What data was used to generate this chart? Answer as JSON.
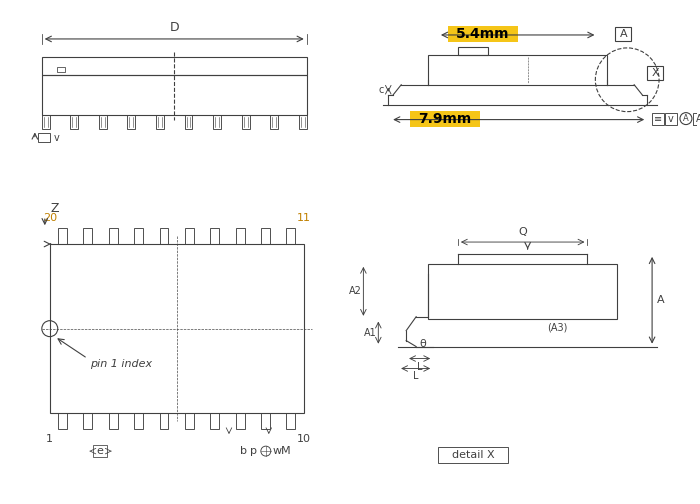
{
  "bg_color": "#ffffff",
  "line_color": "#404040",
  "dim_color": "#404040",
  "highlight_color": "#f5c518",
  "highlight_text_color": "#000000",
  "label_5_4mm": "5.4mm",
  "label_7_9mm": "7.9mm",
  "label_D": "D",
  "label_Z": "Z",
  "label_pin1": "pin 1 index",
  "label_A": "A",
  "label_X": "X",
  "label_v": "v",
  "label_c": "c",
  "label_e": "e",
  "label_b": "b",
  "label_p": "p",
  "label_w": "w",
  "label_M": "M",
  "label_Q": "Q",
  "label_A1": "A1",
  "label_A2": "A2",
  "label_A3": "(A3)",
  "label_L": "L",
  "label_theta": "θ",
  "label_detail": "detail X",
  "num_pins_per_side": 10,
  "fig_width": 7.0,
  "fig_height": 5.04
}
